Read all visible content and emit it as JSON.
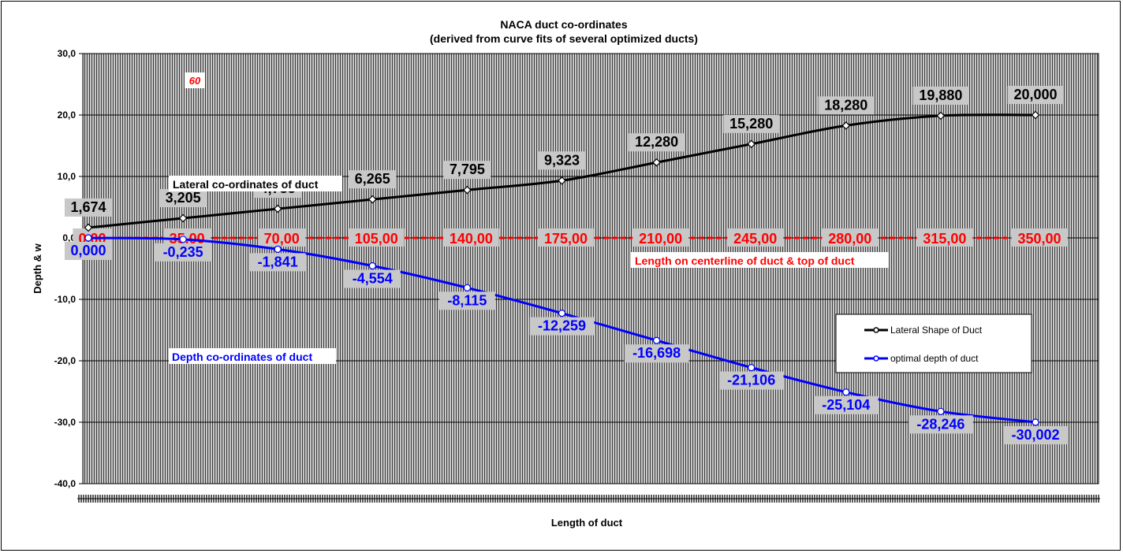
{
  "chart_data": {
    "type": "line",
    "title": "NACA duct co-ordinates",
    "subtitle": "(derived from curve fits of several optimized ducts)",
    "xlabel": "Length of duct",
    "ylabel": "Depth & w",
    "ylim": [
      -40,
      30
    ],
    "y_ticks": [
      "30,0",
      "20,0",
      "10,0",
      "0,0",
      "-10,0",
      "-20,0",
      "-30,0",
      "-40,0"
    ],
    "y_tick_values": [
      30,
      20,
      10,
      0,
      -10,
      -20,
      -30,
      -40
    ],
    "x": [
      0,
      35,
      70,
      105,
      140,
      175,
      210,
      245,
      280,
      315,
      350
    ],
    "x_labels": [
      "0,00",
      "35,00",
      "70,00",
      "105,00",
      "140,00",
      "175,00",
      "210,00",
      "245,00",
      "280,00",
      "315,00",
      "350,00"
    ],
    "series": [
      {
        "name": "Lateral Shape of Duct",
        "color": "#000000",
        "values": [
          1.674,
          3.205,
          4.735,
          6.265,
          7.795,
          9.323,
          12.28,
          15.28,
          18.28,
          19.88,
          20.0
        ],
        "labels": [
          "1,674",
          "3,205",
          "4,735",
          "6,265",
          "7,795",
          "9,323",
          "12,280",
          "15,280",
          "18,280",
          "19,880",
          "20,000"
        ]
      },
      {
        "name": "optimal depth of duct",
        "color": "#0000ff",
        "values": [
          0.0,
          -0.235,
          -1.841,
          -4.554,
          -8.115,
          -12.259,
          -16.698,
          -21.106,
          -25.104,
          -28.246,
          -30.002
        ],
        "labels": [
          "0,000",
          "-0,235",
          "-1,841",
          "-4,554",
          "-8,115",
          "-12,259",
          "-16,698",
          "-21,106",
          "-25,104",
          "-28,246",
          "-30,002"
        ]
      }
    ],
    "centerline_color": "#ff0000",
    "annotations": {
      "lateral": "Lateral co-ordinates of duct",
      "depth": "Depth co-ordinates of duct",
      "centerline": "Length on centerline of duct & top of duct",
      "marker": "60"
    },
    "legend_position": "right",
    "grid": true,
    "plot_background": "#a0a0a0"
  }
}
